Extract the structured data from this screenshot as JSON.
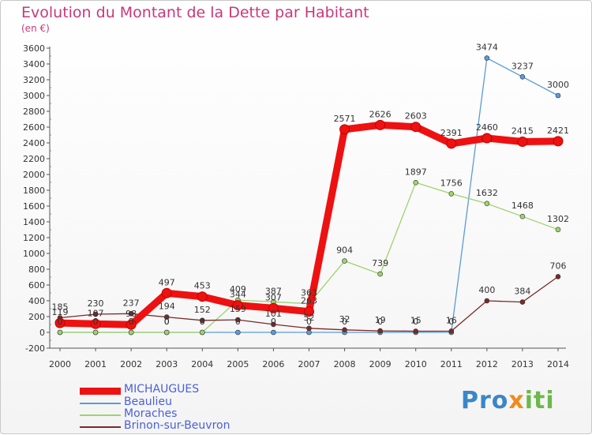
{
  "title": "Evolution du Montant de la Dette par Habitant",
  "subtitle": "(en €)",
  "logo": {
    "part1": "Pro",
    "part2": "x",
    "part3": "iti"
  },
  "chart_data": {
    "type": "line",
    "x": [
      "2000",
      "2001",
      "2002",
      "2003",
      "2004",
      "2005",
      "2006",
      "2007",
      "2008",
      "2009",
      "2010",
      "2011",
      "2012",
      "2013",
      "2014"
    ],
    "ylim": [
      -200,
      3600
    ],
    "yticks": [
      -200,
      0,
      200,
      400,
      600,
      800,
      1000,
      1200,
      1400,
      1600,
      1800,
      2000,
      2200,
      2400,
      2600,
      2800,
      3000,
      3200,
      3400,
      3600
    ],
    "grid": false,
    "legend_position": "bottom-left",
    "series": [
      {
        "name": "MICHAUGUES",
        "color": "#ee1111",
        "width": 9,
        "values": [
          119,
          107,
          98,
          497,
          453,
          344,
          307,
          263,
          2571,
          2626,
          2603,
          2391,
          2460,
          2415,
          2421
        ],
        "labels": [
          "119",
          "107",
          "98",
          "497",
          "453",
          "344",
          "307",
          "263",
          "2571",
          "2626",
          "2603",
          "2391",
          "2460",
          "2415",
          "2421"
        ]
      },
      {
        "name": "Beaulieu",
        "color": "#5a9bd8",
        "width": 1.3,
        "values": [
          0,
          0,
          0,
          0,
          0,
          0,
          0,
          0,
          0,
          0,
          0,
          0,
          3474,
          3237,
          3000
        ],
        "labels": [
          "0",
          "0",
          "0",
          "0",
          "0",
          "0",
          "0",
          "0",
          "0",
          "0",
          "0",
          "0",
          "3474",
          "3237",
          "3000"
        ]
      },
      {
        "name": "Moraches",
        "color": "#9ed36e",
        "width": 1.3,
        "values": [
          0,
          0,
          0,
          0,
          0,
          409,
          387,
          363,
          904,
          739,
          1897,
          1756,
          1632,
          1468,
          1302
        ],
        "labels": [
          "0",
          "0",
          "0",
          "0",
          "0",
          "409",
          "387",
          "363",
          "904",
          "739",
          "1897",
          "1756",
          "1632",
          "1468",
          "1302"
        ]
      },
      {
        "name": "Brinon-sur-Beuvron",
        "color": "#7a2a2a",
        "width": 1.3,
        "values": [
          185,
          230,
          237,
          194,
          152,
          159,
          101,
          52,
          32,
          19,
          15,
          16,
          400,
          384,
          706
        ],
        "labels": [
          "185",
          "230",
          "237",
          "194",
          "152",
          "159",
          "101",
          "52",
          "32",
          "19",
          "15",
          "16",
          "400",
          "384",
          "706"
        ]
      }
    ]
  }
}
